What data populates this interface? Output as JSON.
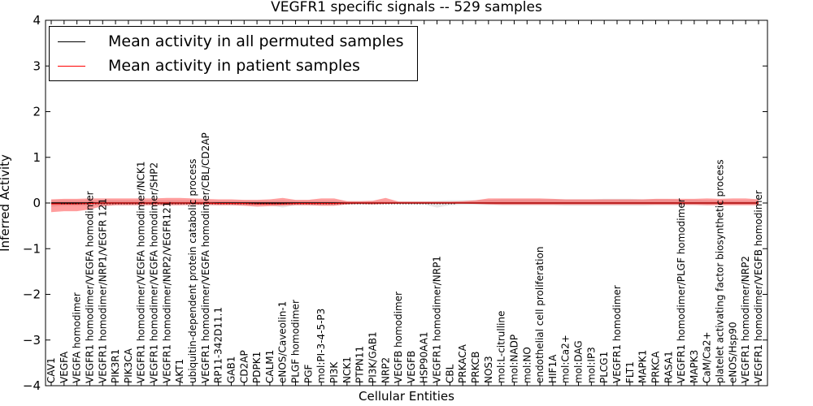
{
  "chart_data": {
    "type": "line",
    "title": "VEGFR1 specific signals -- 529 samples",
    "xlabel": "Cellular Entities",
    "ylabel": "Inferred Activity",
    "ylim": [
      -4,
      4
    ],
    "yticks": [
      4,
      3,
      2,
      1,
      0,
      -1,
      -2,
      -3,
      -4
    ],
    "ytick_labels": [
      "4",
      "3",
      "2",
      "1",
      "0",
      "−1",
      "−2",
      "−3",
      "−4"
    ],
    "grid": false,
    "legend_position": "top-left",
    "categories": [
      "CAV1",
      "VEGFA",
      "VEGFA homodimer",
      "VEGFR1 homodimer/VEGFA homodimer",
      "VEGFR1 homodimer/NRP1/VEGFR 121",
      "PIK3R1",
      "PIK3CA",
      "VEGFR1 homodimer/VEGFA homodimer/NCK1",
      "VEGFR1 homodimer/VEGFA homodimer/SHP2",
      "VEGFR1 homodimer/NRP2/VEGFR121",
      "AKT1",
      "ubiquitin-dependent protein catabolic process",
      "VEGFR1 homodimer/VEGFA homodimer/CBL/CD2AP",
      "RP11-342D11.1",
      "GAB1",
      "CD2AP",
      "PDPK1",
      "CALM1",
      "eNOS/Caveolin-1",
      "PLGF homodimer",
      "PGF",
      "mol:PI-3-4-5-P3",
      "PI3K",
      "NCK1",
      "PTPN11",
      "PI3K/GAB1",
      "NRP2",
      "VEGFB homodimer",
      "VEGFB",
      "HSP90AA1",
      "VEGFR1 homodimer/NRP1",
      "CBL",
      "PRKACA",
      "PRKCB",
      "NOS3",
      "mol:L-citrulline",
      "mol:NADP",
      "mol:NO",
      "endothelial cell proliferation",
      "HIF1A",
      "mol:Ca2+",
      "mol:DAG",
      "mol:IP3",
      "PLCG1",
      "VEGFR1 homodimer",
      "FLT1",
      "MAPK1",
      "PRKCA",
      "RASA1",
      "VEGFR1 homodimer/PLGF homodimer",
      "MAPK3",
      "CaM/Ca2+",
      "platelet activating factor biosynthetic process",
      "eNOS/Hsp90",
      "VEGFR1 homodimer/NRP2",
      "VEGFR1 homodimer/VEGFB homodimer"
    ],
    "series": [
      {
        "name": "Mean activity in all permuted samples",
        "color": "#000000",
        "values": [
          0,
          0,
          0,
          0,
          0,
          0,
          0,
          0,
          0,
          0,
          0,
          0,
          0,
          0,
          0,
          0,
          0,
          0,
          0,
          0,
          0,
          0,
          0,
          0,
          0,
          0,
          0,
          0,
          0,
          0,
          0,
          0,
          0,
          0,
          0,
          0,
          0,
          0,
          0,
          0,
          0,
          0,
          0,
          0,
          0,
          0,
          0,
          0,
          0,
          0,
          0,
          0,
          0,
          0,
          0,
          0
        ],
        "band_lower": [
          -0.08,
          -0.06,
          -0.06,
          -0.06,
          -0.06,
          -0.05,
          -0.05,
          -0.05,
          -0.05,
          -0.05,
          -0.05,
          -0.05,
          -0.05,
          -0.05,
          -0.05,
          -0.05,
          -0.05,
          -0.05,
          -0.1,
          -0.05,
          -0.05,
          -0.05,
          -0.05,
          -0.03,
          -0.03,
          -0.03,
          -0.02,
          -0.02,
          -0.03,
          -0.03,
          -0.1,
          -0.05,
          -0.04,
          -0.04,
          -0.05,
          -0.05,
          -0.05,
          -0.05,
          -0.05,
          -0.05,
          -0.06,
          -0.06,
          -0.06,
          -0.06,
          -0.06,
          -0.06,
          -0.06,
          -0.05,
          -0.05,
          -0.05,
          -0.05,
          -0.05,
          -0.04,
          -0.04,
          -0.04,
          -0.04
        ],
        "band_upper": [
          0.06,
          0.06,
          0.06,
          0.06,
          0.06,
          0.06,
          0.06,
          0.06,
          0.06,
          0.06,
          0.06,
          0.06,
          0.05,
          0.05,
          0.05,
          0.05,
          0.05,
          0.05,
          0.06,
          0.05,
          0.05,
          0.05,
          0.05,
          0.04,
          0.04,
          0.04,
          0.04,
          0.04,
          0.04,
          0.04,
          0.05,
          0.06,
          0.06,
          0.06,
          0.07,
          0.08,
          0.08,
          0.08,
          0.08,
          0.08,
          0.08,
          0.08,
          0.08,
          0.09,
          0.09,
          0.09,
          0.08,
          0.08,
          0.08,
          0.07,
          0.07,
          0.06,
          0.06,
          0.05,
          0.05,
          0.05
        ]
      },
      {
        "name": "Mean activity in patient samples",
        "color": "#ff0000",
        "values": [
          -0.02,
          -0.02,
          -0.02,
          -0.01,
          0,
          0,
          0,
          0,
          0,
          0,
          0,
          0,
          0,
          -0.01,
          -0.01,
          -0.01,
          -0.02,
          -0.02,
          -0.02,
          -0.01,
          -0.01,
          -0.01,
          -0.01,
          0,
          0,
          0,
          0,
          0,
          0,
          0,
          0,
          0,
          0,
          0,
          0,
          0,
          0,
          0,
          0,
          0,
          0,
          0,
          0,
          0,
          0,
          0,
          0,
          0,
          0,
          0,
          0,
          0,
          0,
          0,
          0,
          0
        ],
        "band_lower": [
          -0.2,
          -0.18,
          -0.18,
          -0.14,
          -0.07,
          -0.05,
          -0.05,
          -0.05,
          -0.05,
          -0.05,
          -0.05,
          -0.04,
          -0.04,
          -0.05,
          -0.05,
          -0.06,
          -0.08,
          -0.07,
          -0.06,
          -0.05,
          -0.05,
          -0.06,
          -0.06,
          -0.03,
          -0.02,
          -0.03,
          -0.02,
          -0.01,
          -0.01,
          -0.01,
          -0.01,
          -0.01,
          -0.01,
          -0.02,
          -0.03,
          -0.04,
          -0.04,
          -0.04,
          -0.04,
          -0.04,
          -0.04,
          -0.04,
          -0.04,
          -0.04,
          -0.04,
          -0.04,
          -0.04,
          -0.04,
          -0.04,
          -0.04,
          -0.04,
          -0.05,
          -0.05,
          -0.05,
          -0.05,
          -0.05
        ],
        "band_upper": [
          0.08,
          0.09,
          0.09,
          0.1,
          0.1,
          0.1,
          0.1,
          0.1,
          0.1,
          0.11,
          0.11,
          0.1,
          0.09,
          0.08,
          0.08,
          0.07,
          0.07,
          0.08,
          0.11,
          0.07,
          0.07,
          0.1,
          0.1,
          0.04,
          0.04,
          0.05,
          0.11,
          0.03,
          0.03,
          0.03,
          0.03,
          0.03,
          0.04,
          0.06,
          0.1,
          0.1,
          0.1,
          0.1,
          0.1,
          0.09,
          0.08,
          0.08,
          0.08,
          0.08,
          0.08,
          0.08,
          0.08,
          0.09,
          0.09,
          0.09,
          0.09,
          0.1,
          0.09,
          0.1,
          0.1,
          0.08
        ]
      }
    ]
  }
}
